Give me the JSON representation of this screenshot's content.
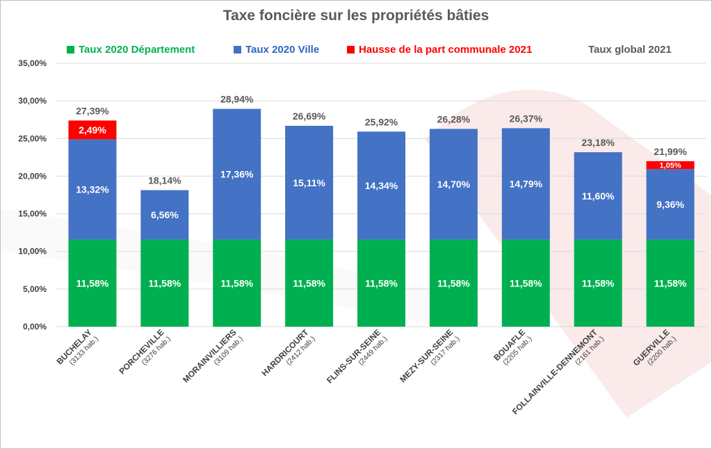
{
  "chart_data": {
    "type": "bar",
    "stacked": true,
    "title": "Taxe foncière sur les propriétés bâties",
    "categories": [
      {
        "name": "BUCHELAY",
        "pop": "(3133 hab.)"
      },
      {
        "name": "PORCHEVILLE",
        "pop": "(3276 hab.)"
      },
      {
        "name": "MORAINVILLIERS",
        "pop": "(3109 hab.)"
      },
      {
        "name": "HARDRICOURT",
        "pop": "(2412 hab.)"
      },
      {
        "name": "FLINS-SUR-SEINE",
        "pop": "(2449 hab.)"
      },
      {
        "name": "MEZY-SUR-SEINE",
        "pop": "(2317 hab.)"
      },
      {
        "name": "BOUAFLE",
        "pop": "(2205 hab.)"
      },
      {
        "name": "FOLLAINVILLE-DENNEMONT",
        "pop": "(2161 hab.)"
      },
      {
        "name": "GUERVILLE",
        "pop": "(2200 hab.)"
      }
    ],
    "series": [
      {
        "name": "Taux 2020 Département",
        "color": "#00b050",
        "values": [
          11.58,
          11.58,
          11.58,
          11.58,
          11.58,
          11.58,
          11.58,
          11.58,
          11.58
        ],
        "labels": [
          "11,58%",
          "11,58%",
          "11,58%",
          "11,58%",
          "11,58%",
          "11,58%",
          "11,58%",
          "11,58%",
          "11,58%"
        ]
      },
      {
        "name": "Taux 2020 Ville",
        "color": "#4472c4",
        "values": [
          13.32,
          6.56,
          17.36,
          15.11,
          14.34,
          14.7,
          14.79,
          11.6,
          9.36
        ],
        "labels": [
          "13,32%",
          "6,56%",
          "17,36%",
          "15,11%",
          "14,34%",
          "14,70%",
          "14,79%",
          "11,60%",
          "9,36%"
        ]
      },
      {
        "name": "Hausse de la part communale 2021",
        "color": "#ff0000",
        "values": [
          2.49,
          0,
          0,
          0,
          0,
          0,
          0,
          0,
          1.05
        ],
        "labels": [
          "2,49%",
          "",
          "",
          "",
          "",
          "",
          "",
          "",
          "1,05%"
        ]
      }
    ],
    "totals": {
      "name": "Taux global 2021",
      "color": "#595959",
      "values": [
        27.39,
        18.14,
        28.94,
        26.69,
        25.92,
        26.28,
        26.37,
        23.18,
        21.99
      ],
      "labels": [
        "27,39%",
        "18,14%",
        "28,94%",
        "26,69%",
        "25,92%",
        "26,28%",
        "26,37%",
        "23,18%",
        "21,99%"
      ]
    },
    "yticks": [
      "0,00%",
      "5,00%",
      "10,00%",
      "15,00%",
      "20,00%",
      "25,00%",
      "30,00%",
      "35,00%"
    ],
    "ylim": [
      0,
      35
    ],
    "grid": true,
    "legend_position": "top"
  }
}
